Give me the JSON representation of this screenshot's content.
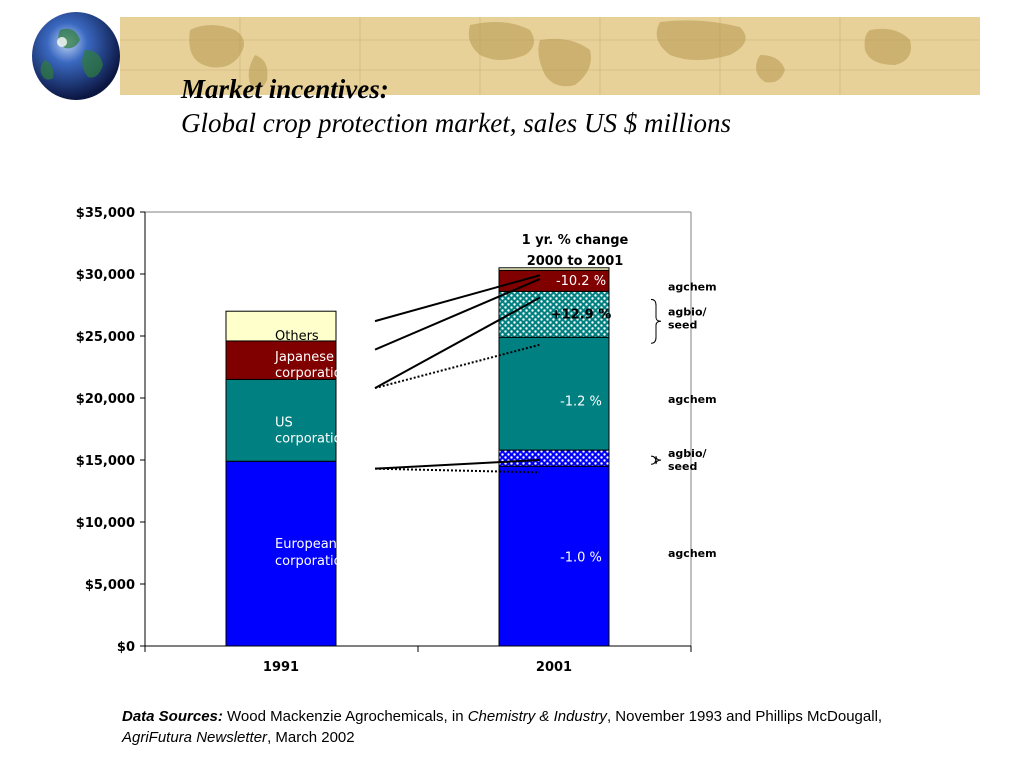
{
  "title": "Market incentives:",
  "subtitle": "Global crop protection market, sales US $ millions",
  "chart_data": {
    "type": "bar",
    "stacked": true,
    "categories": [
      "1991",
      "2001"
    ],
    "ylim": [
      0,
      35000
    ],
    "yticks": [
      0,
      5000,
      10000,
      15000,
      20000,
      25000,
      30000,
      35000
    ],
    "ytick_labels": [
      "$0",
      "$5,000",
      "$10,000",
      "$15,000",
      "$20,000",
      "$25,000",
      "$30,000",
      "$35,000"
    ],
    "series_1991": [
      {
        "name": "European corporations",
        "bottom": 0,
        "top": 14900,
        "color": "#0000ff"
      },
      {
        "name": "US corporations",
        "bottom": 14900,
        "top": 21500,
        "color": "#008080"
      },
      {
        "name": "Japanese corporations",
        "bottom": 21500,
        "top": 24600,
        "color": "#800000"
      },
      {
        "name": "Others",
        "bottom": 24600,
        "top": 27000,
        "color": "#ffffcc"
      }
    ],
    "series_2001": [
      {
        "name": "European agchem",
        "bottom": 0,
        "top": 14500,
        "color": "#0000ff",
        "pattern": "none"
      },
      {
        "name": "European agbio/seed",
        "bottom": 14500,
        "top": 15800,
        "color": "#0000ff",
        "pattern": "dots"
      },
      {
        "name": "US agchem",
        "bottom": 15800,
        "top": 24900,
        "color": "#008080",
        "pattern": "none"
      },
      {
        "name": "US agbio/seed",
        "bottom": 24900,
        "top": 28600,
        "color": "#008080",
        "pattern": "dots"
      },
      {
        "name": "Japanese agchem",
        "bottom": 28600,
        "top": 30300,
        "color": "#800000",
        "pattern": "none"
      },
      {
        "name": "Others",
        "bottom": 30300,
        "top": 30500,
        "color": "#ffffcc",
        "pattern": "none"
      }
    ],
    "segment_labels_1991": [
      "Others",
      "Japanese corporations",
      "US corporations",
      "European corporations"
    ],
    "pct_change_header": [
      "1 yr. % change",
      "2000 to 2001"
    ],
    "pct_changes": [
      {
        "label": "-10.2 %",
        "value": 29500
      },
      {
        "label": "+12.9 %",
        "value": 26800
      },
      {
        "label": "-1.2 %",
        "value": 19800
      },
      {
        "label": "-1.0 %",
        "value": 7200
      }
    ],
    "side_labels": [
      {
        "lines": [
          "agchem"
        ],
        "value": 29000
      },
      {
        "lines": [
          "agbio/",
          "seed"
        ],
        "value": 26500
      },
      {
        "lines": [
          "agchem"
        ],
        "value": 19900
      },
      {
        "lines": [
          "agbio/",
          "seed"
        ],
        "value": 15100
      },
      {
        "lines": [
          "agchem"
        ],
        "value": 7500
      }
    ],
    "connectors": [
      {
        "from": 26200,
        "to": 29900,
        "style": "solid"
      },
      {
        "from": 23900,
        "to": 29600,
        "style": "solid"
      },
      {
        "from": 20800,
        "to": 28100,
        "style": "solid"
      },
      {
        "from": 20800,
        "to": 24300,
        "style": "dotted"
      },
      {
        "from": 14300,
        "to": 15000,
        "style": "solid"
      },
      {
        "from": 14300,
        "to": 14000,
        "style": "dotted"
      }
    ]
  },
  "sources": {
    "label": "Data Sources:",
    "part1": " Wood Mackenzie Agrochemicals, in ",
    "journal": "Chemistry & Industry",
    "part2": ", November 1993 and Phillips McDougall, ",
    "newsletter": "AgriFutura Newsletter",
    "part3": ", March 2002"
  },
  "colors": {
    "banner": "#e8d199",
    "banner_map": "#c9ae6c",
    "globe": "#3a5fb0"
  }
}
